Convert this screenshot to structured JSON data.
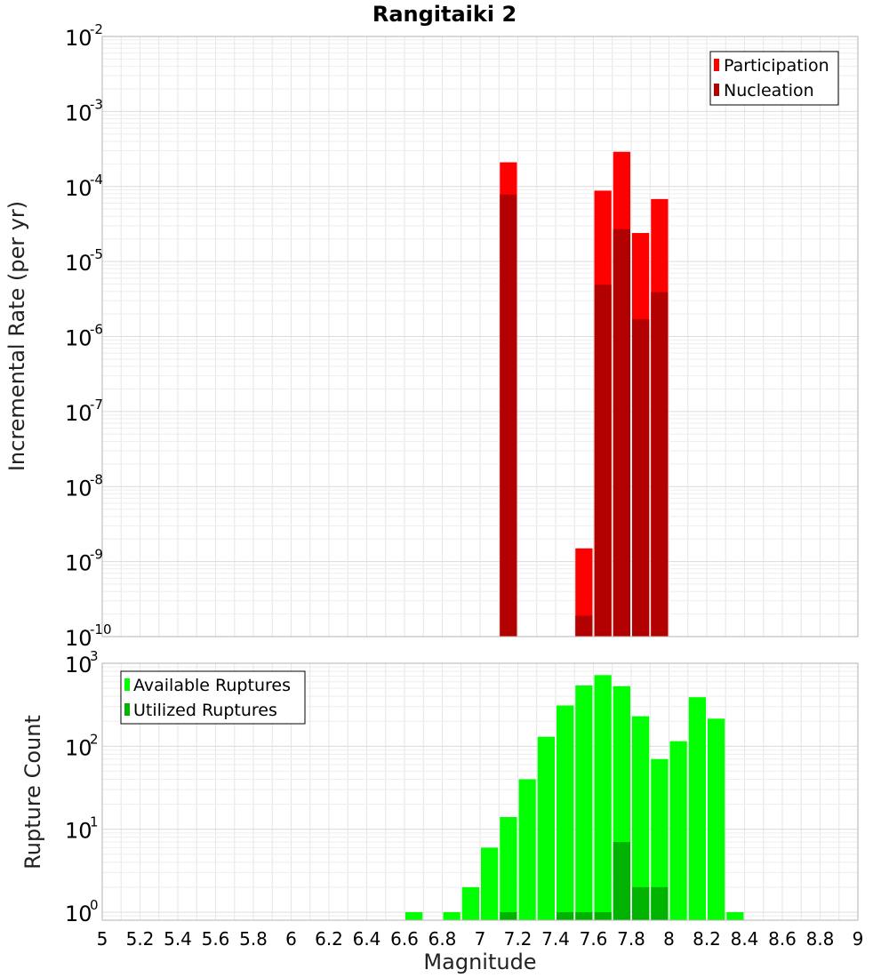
{
  "chart_data": [
    {
      "type": "bar",
      "panel": "top",
      "title": "Rangitaiki 2",
      "xlabel": "",
      "ylabel": "Incremental Rate (per yr)",
      "y_scale": "log",
      "ylim": [
        1e-10,
        0.01
      ],
      "y_ticks": [
        {
          "base": "10",
          "exp": "-10"
        },
        {
          "base": "10",
          "exp": "-9"
        },
        {
          "base": "10",
          "exp": "-8"
        },
        {
          "base": "10",
          "exp": "-7"
        },
        {
          "base": "10",
          "exp": "-6"
        },
        {
          "base": "10",
          "exp": "-5"
        },
        {
          "base": "10",
          "exp": "-4"
        },
        {
          "base": "10",
          "exp": "-3"
        },
        {
          "base": "10",
          "exp": "-2"
        }
      ],
      "xlim": [
        5,
        9
      ],
      "grid": true,
      "legend_position": "top-right",
      "series": [
        {
          "name": "Participation",
          "color": "#ff0000",
          "points": [
            {
              "x": 7.15,
              "y": 0.00021
            },
            {
              "x": 7.55,
              "y": 1.5e-09
            },
            {
              "x": 7.65,
              "y": 8.8e-05
            },
            {
              "x": 7.75,
              "y": 0.00029
            },
            {
              "x": 7.85,
              "y": 2.4e-05
            },
            {
              "x": 7.95,
              "y": 6.8e-05
            }
          ]
        },
        {
          "name": "Nucleation",
          "color": "#b30000",
          "points": [
            {
              "x": 7.15,
              "y": 7.8e-05
            },
            {
              "x": 7.55,
              "y": 1.9e-10
            },
            {
              "x": 7.65,
              "y": 4.9e-06
            },
            {
              "x": 7.75,
              "y": 2.7e-05
            },
            {
              "x": 7.85,
              "y": 1.7e-06
            },
            {
              "x": 7.95,
              "y": 3.9e-06
            }
          ]
        }
      ]
    },
    {
      "type": "bar",
      "panel": "bottom",
      "title": "",
      "xlabel": "Magnitude",
      "ylabel": "Rupture Count",
      "y_scale": "log",
      "ylim": [
        0.8,
        1000
      ],
      "y_ticks": [
        {
          "base": "10",
          "exp": "0"
        },
        {
          "base": "10",
          "exp": "1"
        },
        {
          "base": "10",
          "exp": "2"
        },
        {
          "base": "10",
          "exp": "3"
        }
      ],
      "xlim": [
        5,
        9
      ],
      "x_ticks": [
        "5",
        "5.2",
        "5.4",
        "5.6",
        "5.8",
        "6",
        "6.2",
        "6.4",
        "6.6",
        "6.8",
        "7",
        "7.2",
        "7.4",
        "7.6",
        "7.8",
        "8",
        "8.2",
        "8.4",
        "8.6",
        "8.8",
        "9"
      ],
      "grid": true,
      "legend_position": "top-left",
      "series": [
        {
          "name": "Available Ruptures",
          "color": "#00ff00",
          "points": [
            {
              "x": 6.65,
              "y": 1
            },
            {
              "x": 6.85,
              "y": 1
            },
            {
              "x": 6.95,
              "y": 2
            },
            {
              "x": 7.05,
              "y": 6
            },
            {
              "x": 7.15,
              "y": 14
            },
            {
              "x": 7.25,
              "y": 40
            },
            {
              "x": 7.35,
              "y": 130
            },
            {
              "x": 7.45,
              "y": 310
            },
            {
              "x": 7.55,
              "y": 540
            },
            {
              "x": 7.65,
              "y": 720
            },
            {
              "x": 7.75,
              "y": 530
            },
            {
              "x": 7.85,
              "y": 230
            },
            {
              "x": 7.95,
              "y": 70
            },
            {
              "x": 8.05,
              "y": 115
            },
            {
              "x": 8.15,
              "y": 390
            },
            {
              "x": 8.25,
              "y": 215
            },
            {
              "x": 8.35,
              "y": 1
            }
          ]
        },
        {
          "name": "Utilized Ruptures",
          "color": "#00b300",
          "points": [
            {
              "x": 7.15,
              "y": 1
            },
            {
              "x": 7.45,
              "y": 1
            },
            {
              "x": 7.55,
              "y": 1
            },
            {
              "x": 7.65,
              "y": 1
            },
            {
              "x": 7.75,
              "y": 7
            },
            {
              "x": 7.85,
              "y": 2
            },
            {
              "x": 7.95,
              "y": 2
            }
          ]
        }
      ]
    }
  ]
}
